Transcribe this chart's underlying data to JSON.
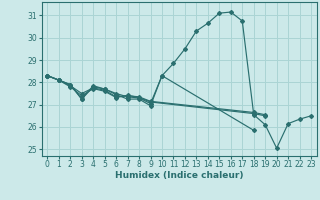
{
  "title": "",
  "xlabel": "Humidex (Indice chaleur)",
  "bg_color": "#cce9e9",
  "grid_color": "#aad4d4",
  "line_color": "#2a6f6f",
  "xlim": [
    -0.5,
    23.5
  ],
  "ylim": [
    24.7,
    31.6
  ],
  "yticks": [
    25,
    26,
    27,
    28,
    29,
    30,
    31
  ],
  "xticks": [
    0,
    1,
    2,
    3,
    4,
    5,
    6,
    7,
    8,
    9,
    10,
    11,
    12,
    13,
    14,
    15,
    16,
    17,
    18,
    19,
    20,
    21,
    22,
    23
  ],
  "curve_main_x": [
    0,
    1,
    2,
    3,
    4,
    5,
    6,
    7,
    8,
    9,
    10,
    11,
    12,
    13,
    14,
    15,
    16,
    17,
    18,
    19,
    20,
    21,
    22,
    23
  ],
  "curve_main_y": [
    28.3,
    28.1,
    27.9,
    27.25,
    27.8,
    27.7,
    27.5,
    27.35,
    27.3,
    27.05,
    28.3,
    28.85,
    29.5,
    30.3,
    30.65,
    31.1,
    31.15,
    30.75,
    26.55,
    26.1,
    25.05,
    26.15,
    26.35,
    26.5
  ],
  "curve2_x": [
    0,
    1,
    2,
    3,
    4,
    5,
    6,
    7,
    8,
    9,
    10,
    18
  ],
  "curve2_y": [
    28.3,
    28.1,
    27.9,
    27.25,
    27.85,
    27.7,
    27.45,
    27.25,
    27.25,
    26.95,
    28.3,
    25.85
  ],
  "curve3_x": [
    0,
    1,
    2,
    3,
    4,
    5,
    6,
    7,
    8,
    9,
    18,
    19
  ],
  "curve3_y": [
    28.3,
    28.1,
    27.85,
    27.5,
    27.75,
    27.65,
    27.35,
    27.4,
    27.35,
    27.15,
    26.65,
    26.55
  ],
  "curve4_x": [
    0,
    1,
    2,
    3,
    4,
    5,
    6,
    7,
    8,
    9,
    18,
    19
  ],
  "curve4_y": [
    28.3,
    28.1,
    27.8,
    27.4,
    27.72,
    27.6,
    27.32,
    27.42,
    27.32,
    27.12,
    26.6,
    26.5
  ]
}
